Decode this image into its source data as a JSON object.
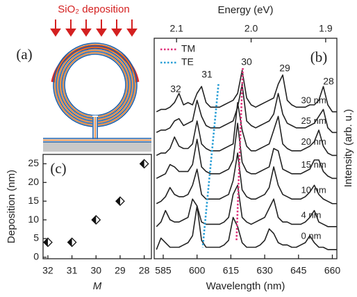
{
  "diagram": {
    "label": "(a)",
    "title": "SiO₂ deposition"
  },
  "chart_data": [
    {
      "type": "line",
      "panel_label": "(b)",
      "xlabel": "Wavelength (nm)",
      "ylabel": "Intensity (arb. u.)",
      "x2label": "Energy (eV)",
      "xlim": [
        581,
        662
      ],
      "xticks": [
        585,
        600,
        615,
        630,
        645,
        660
      ],
      "x2lim": [
        2.13,
        1.885
      ],
      "x2ticks": [
        2.1,
        {
          "value": 2,
          "label": "2.0"
        },
        1.9
      ],
      "ylim": [
        0,
        9.6
      ],
      "x": [
        582,
        584,
        586,
        588,
        590,
        592,
        594,
        596,
        598,
        600,
        602,
        604,
        606,
        608,
        610,
        612,
        614,
        616,
        618,
        620,
        622,
        624,
        626,
        628,
        630,
        632,
        634,
        636,
        638,
        640,
        642,
        644,
        646,
        648,
        650,
        652,
        654,
        656,
        658,
        660,
        662
      ],
      "series": [
        {
          "name": "30 nm",
          "color": "#222222",
          "values": [
            6.4,
            6.5,
            6.5,
            6.6,
            6.8,
            7.2,
            6.7,
            6.8,
            6.7,
            7.2,
            7.5,
            6.8,
            6.6,
            6.6,
            6.6,
            6.7,
            6.8,
            6.9,
            7.2,
            8.2,
            7.0,
            6.7,
            6.6,
            6.7,
            6.8,
            6.9,
            7.0,
            7.6,
            8.0,
            6.9,
            6.7,
            6.6,
            6.6,
            6.6,
            6.7,
            6.7,
            6.9,
            7.5,
            6.7,
            6.4,
            6.4
          ]
        },
        {
          "name": "25 nm",
          "color": "#222222",
          "values": [
            5.5,
            5.6,
            5.6,
            5.7,
            6.0,
            6.1,
            5.8,
            5.9,
            6.0,
            6.9,
            6.2,
            5.8,
            5.7,
            5.7,
            5.7,
            5.8,
            5.9,
            6.0,
            6.6,
            7.6,
            6.0,
            5.8,
            5.7,
            5.8,
            5.9,
            6.0,
            6.3,
            7.2,
            6.3,
            5.9,
            5.8,
            5.7,
            5.7,
            5.7,
            5.8,
            5.9,
            6.2,
            6.5,
            5.7,
            5.5,
            5.5
          ]
        },
        {
          "name": "20 nm",
          "color": "#222222",
          "values": [
            4.5,
            4.6,
            4.6,
            4.8,
            5.3,
            4.9,
            4.8,
            4.8,
            5.0,
            6.0,
            5.0,
            4.8,
            4.7,
            4.7,
            4.7,
            4.8,
            4.9,
            5.0,
            6.8,
            5.6,
            4.9,
            4.7,
            4.7,
            4.8,
            4.9,
            5.0,
            5.6,
            6.2,
            5.0,
            4.8,
            4.7,
            4.7,
            4.7,
            4.8,
            4.9,
            5.1,
            5.6,
            4.9,
            4.6,
            4.5,
            4.5
          ]
        },
        {
          "name": "15 nm",
          "color": "#222222",
          "values": [
            3.5,
            3.6,
            3.7,
            4.1,
            4.0,
            3.8,
            3.8,
            3.8,
            4.1,
            5.2,
            4.0,
            3.8,
            3.7,
            3.7,
            3.7,
            3.8,
            3.9,
            4.3,
            5.9,
            4.2,
            3.8,
            3.7,
            3.7,
            3.8,
            3.9,
            4.0,
            4.8,
            4.7,
            3.9,
            3.8,
            3.7,
            3.7,
            3.7,
            3.8,
            3.9,
            4.3,
            4.3,
            3.8,
            3.6,
            3.5,
            3.5
          ]
        },
        {
          "name": "10 nm",
          "color": "#222222",
          "values": [
            2.4,
            2.5,
            2.7,
            3.1,
            2.8,
            2.7,
            2.7,
            2.8,
            3.2,
            3.9,
            2.8,
            2.6,
            2.6,
            2.6,
            2.6,
            2.7,
            2.8,
            3.4,
            4.6,
            3.0,
            2.7,
            2.6,
            2.6,
            2.7,
            2.8,
            3.1,
            4.0,
            3.2,
            2.8,
            2.7,
            2.6,
            2.6,
            2.6,
            2.7,
            2.9,
            3.2,
            2.8,
            2.6,
            2.5,
            2.4,
            2.4
          ]
        },
        {
          "name": "4 nm",
          "color": "#222222",
          "values": [
            1.4,
            1.6,
            2.1,
            1.7,
            1.6,
            1.6,
            1.7,
            1.8,
            2.6,
            2.3,
            1.6,
            1.5,
            1.5,
            1.5,
            1.5,
            1.6,
            1.8,
            2.8,
            3.2,
            1.8,
            1.6,
            1.5,
            1.6,
            1.7,
            1.8,
            2.2,
            2.6,
            1.8,
            1.6,
            1.6,
            1.5,
            1.5,
            1.5,
            1.6,
            1.8,
            2.1,
            1.6,
            1.5,
            1.4,
            1.4,
            1.4
          ]
        },
        {
          "name": "0 nm",
          "color": "#222222",
          "values": [
            0.4,
            0.9,
            0.7,
            0.5,
            0.5,
            0.5,
            0.6,
            0.7,
            1.0,
            2.3,
            0.8,
            0.5,
            0.5,
            0.5,
            0.5,
            0.6,
            0.8,
            1.8,
            1.4,
            0.7,
            0.5,
            0.5,
            0.5,
            0.6,
            0.8,
            1.3,
            1.1,
            0.7,
            0.6,
            0.6,
            0.5,
            0.5,
            0.6,
            0.7,
            1.0,
            0.7,
            0.5,
            0.5,
            0.4,
            0.4,
            0.4
          ]
        }
      ],
      "annotations": [
        "32",
        "31",
        "30",
        "29",
        "28"
      ],
      "guides": [
        {
          "name": "TM",
          "color": "#e0307a",
          "x": [
            620.3,
            617.5
          ],
          "values": [
            8.3,
            0.8
          ]
        },
        {
          "name": "TE",
          "color": "#2a9fd6",
          "x": [
            609.5,
            602.5
          ],
          "values": [
            7.6,
            0.5
          ]
        }
      ],
      "legend": "upper left"
    },
    {
      "type": "scatter",
      "panel_label": "(c)",
      "xlabel": "M",
      "ylabel": "Deposition (nm)",
      "xlim": [
        32.2,
        27.7
      ],
      "xticks": [
        32,
        31,
        30,
        29,
        28
      ],
      "ylim": [
        -0.4,
        27.5
      ],
      "yticks": [
        0,
        5,
        10,
        15,
        20,
        25
      ],
      "x": [
        32,
        31,
        30,
        29,
        28
      ],
      "values": [
        4,
        4,
        10,
        15,
        25
      ],
      "color": "#111111"
    }
  ]
}
